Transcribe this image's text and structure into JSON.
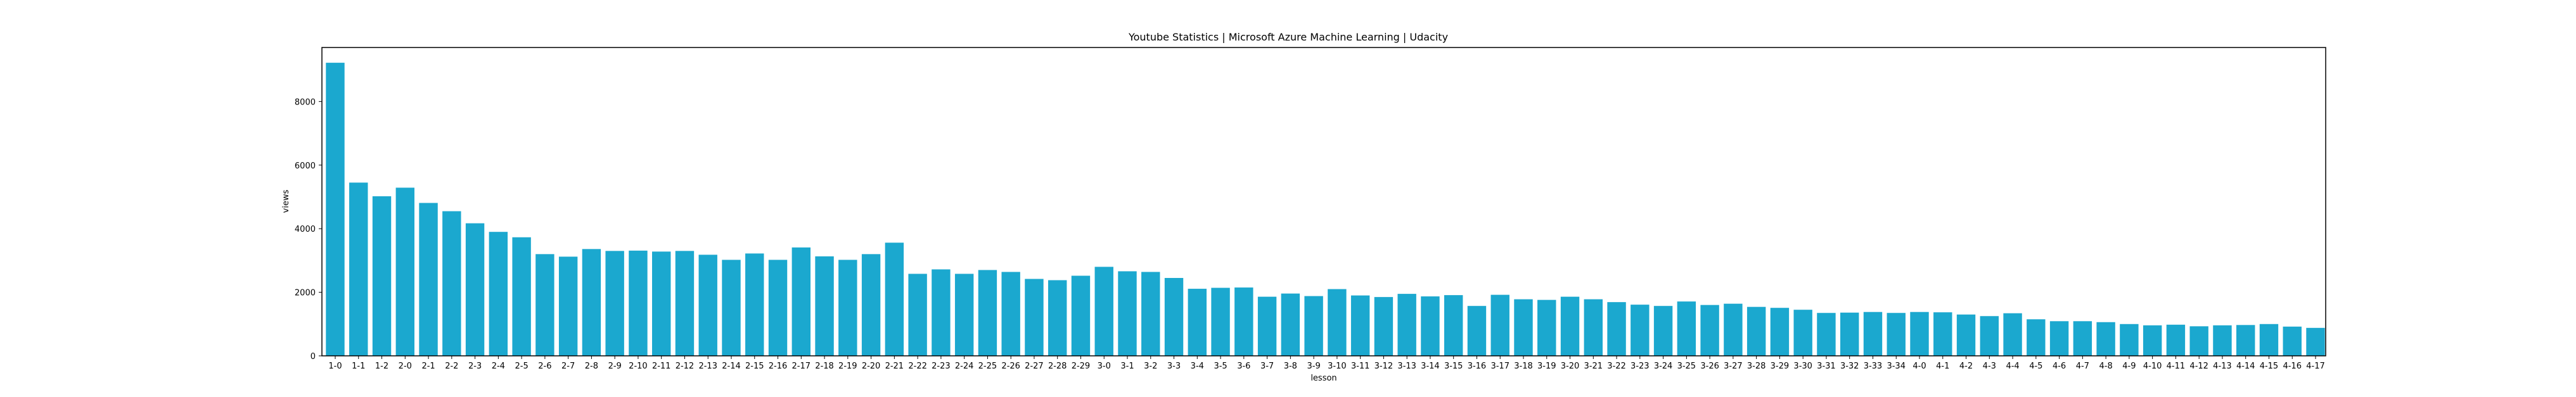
{
  "chart_data": {
    "type": "bar",
    "title": "Youtube Statistics | Microsoft Azure Machine Learning | Udacity",
    "xlabel": "lesson",
    "ylabel": "views",
    "ylim": [
      0,
      9700
    ],
    "yticks": [
      0,
      2000,
      4000,
      6000,
      8000
    ],
    "grid": false,
    "bar_color": "#1ba8cf",
    "categories": [
      "1-0",
      "1-1",
      "1-2",
      "2-0",
      "2-1",
      "2-2",
      "2-3",
      "2-4",
      "2-5",
      "2-6",
      "2-7",
      "2-8",
      "2-9",
      "2-10",
      "2-11",
      "2-12",
      "2-13",
      "2-14",
      "2-15",
      "2-16",
      "2-17",
      "2-18",
      "2-19",
      "2-20",
      "2-21",
      "2-22",
      "2-23",
      "2-24",
      "2-25",
      "2-26",
      "2-27",
      "2-28",
      "2-29",
      "3-0",
      "3-1",
      "3-2",
      "3-3",
      "3-4",
      "3-5",
      "3-6",
      "3-7",
      "3-8",
      "3-9",
      "3-10",
      "3-11",
      "3-12",
      "3-13",
      "3-14",
      "3-15",
      "3-16",
      "3-17",
      "3-18",
      "3-19",
      "3-20",
      "3-21",
      "3-22",
      "3-23",
      "3-24",
      "3-25",
      "3-26",
      "3-27",
      "3-28",
      "3-29",
      "3-30",
      "3-31",
      "3-32",
      "3-33",
      "3-34",
      "4-0",
      "4-1",
      "4-2",
      "4-3",
      "4-4",
      "4-5",
      "4-6",
      "4-7",
      "4-8",
      "4-9",
      "4-10",
      "4-11",
      "4-12",
      "4-13",
      "4-14",
      "4-15",
      "4-16",
      "4-17"
    ],
    "values": [
      9220,
      5450,
      5020,
      5290,
      4810,
      4550,
      4170,
      3900,
      3730,
      3200,
      3120,
      3360,
      3300,
      3310,
      3280,
      3300,
      3180,
      3020,
      3220,
      3020,
      3410,
      3130,
      3020,
      3200,
      3560,
      2580,
      2720,
      2580,
      2700,
      2640,
      2420,
      2380,
      2520,
      2800,
      2660,
      2640,
      2450,
      2110,
      2140,
      2150,
      1860,
      1960,
      1880,
      2100,
      1900,
      1850,
      1950,
      1870,
      1910,
      1570,
      1920,
      1780,
      1760,
      1860,
      1780,
      1690,
      1610,
      1570,
      1710,
      1600,
      1640,
      1540,
      1510,
      1450,
      1350,
      1360,
      1380,
      1350,
      1380,
      1370,
      1300,
      1250,
      1340,
      1150,
      1090,
      1090,
      1060,
      1000,
      960,
      980,
      930,
      960,
      970,
      1000,
      920,
      880
    ]
  }
}
